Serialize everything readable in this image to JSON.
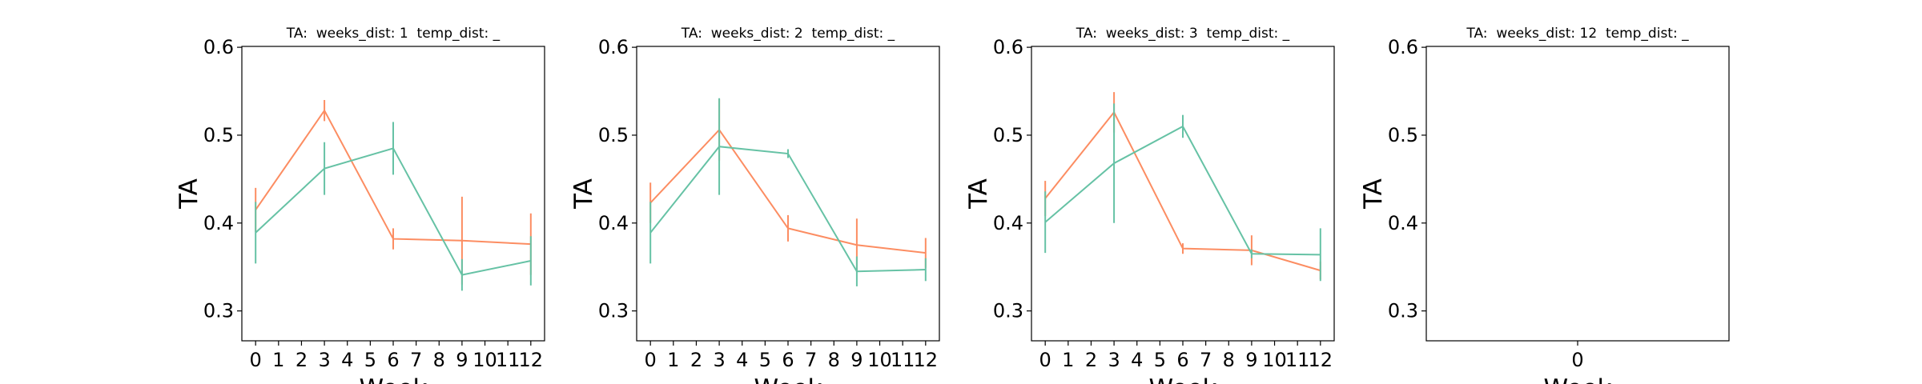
{
  "chart_data": [
    {
      "type": "line",
      "title": "TA:  weeks_dist: 1  temp_dist: _",
      "xlabel": "Week",
      "ylabel": "TA",
      "x": [
        0,
        3,
        6,
        9,
        12
      ],
      "xlim": [
        -0.6,
        12.6
      ],
      "xticks": [
        0,
        1,
        2,
        3,
        4,
        5,
        6,
        7,
        8,
        9,
        10,
        11,
        12
      ],
      "ylim": [
        0.266,
        0.601
      ],
      "yticks": [
        0.3,
        0.4,
        0.5,
        0.6
      ],
      "series": [
        {
          "color": "#fc8d62",
          "values": [
            0.415,
            0.528,
            0.382,
            0.38,
            0.376
          ],
          "errors": [
            0.025,
            0.012,
            0.012,
            0.05,
            0.035
          ]
        },
        {
          "color": "#66c2a5",
          "values": [
            0.389,
            0.462,
            0.485,
            0.341,
            0.357
          ],
          "errors": [
            0.035,
            0.03,
            0.03,
            0.018,
            0.028
          ]
        }
      ]
    },
    {
      "type": "line",
      "title": "TA:  weeks_dist: 2  temp_dist: _",
      "xlabel": "Week",
      "ylabel": "TA",
      "x": [
        0,
        3,
        6,
        9,
        12
      ],
      "xlim": [
        -0.6,
        12.6
      ],
      "xticks": [
        0,
        1,
        2,
        3,
        4,
        5,
        6,
        7,
        8,
        9,
        10,
        11,
        12
      ],
      "ylim": [
        0.266,
        0.601
      ],
      "yticks": [
        0.3,
        0.4,
        0.5,
        0.6
      ],
      "series": [
        {
          "color": "#fc8d62",
          "values": [
            0.423,
            0.506,
            0.394,
            0.375,
            0.366
          ],
          "errors": [
            0.023,
            0.035,
            0.015,
            0.03,
            0.017
          ]
        },
        {
          "color": "#66c2a5",
          "values": [
            0.389,
            0.487,
            0.479,
            0.345,
            0.347
          ],
          "errors": [
            0.035,
            0.055,
            0.005,
            0.017,
            0.013
          ]
        }
      ]
    },
    {
      "type": "line",
      "title": "TA:  weeks_dist: 3  temp_dist: _",
      "xlabel": "Week",
      "ylabel": "TA",
      "x": [
        0,
        3,
        6,
        9,
        12
      ],
      "xlim": [
        -0.6,
        12.6
      ],
      "xticks": [
        0,
        1,
        2,
        3,
        4,
        5,
        6,
        7,
        8,
        9,
        10,
        11,
        12
      ],
      "ylim": [
        0.266,
        0.601
      ],
      "yticks": [
        0.3,
        0.4,
        0.5,
        0.6
      ],
      "series": [
        {
          "color": "#fc8d62",
          "values": [
            0.428,
            0.526,
            0.371,
            0.369,
            0.346
          ],
          "errors": [
            0.02,
            0.023,
            0.006,
            0.017,
            0.01
          ]
        },
        {
          "color": "#66c2a5",
          "values": [
            0.401,
            0.468,
            0.51,
            0.365,
            0.364
          ],
          "errors": [
            0.035,
            0.068,
            0.013,
            0.005,
            0.03
          ]
        }
      ]
    },
    {
      "type": "line",
      "title": "TA:  weeks_dist: 12  temp_dist: _",
      "xlabel": "Week",
      "ylabel": "TA",
      "xlim": [
        -1,
        1
      ],
      "xticks": [
        0
      ],
      "ylim": [
        0.266,
        0.601
      ],
      "yticks": [
        0.3,
        0.4,
        0.5,
        0.6
      ]
    }
  ]
}
